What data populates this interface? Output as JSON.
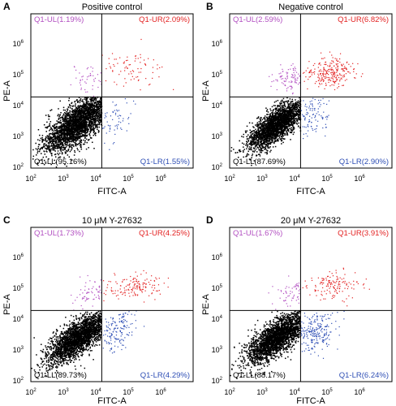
{
  "colors": {
    "ul": "#b24fc1",
    "ur": "#e32222",
    "ll": "#000000",
    "lr": "#2f4fb5"
  },
  "chart_data": [
    {
      "type": "scatter",
      "panel": "A",
      "title": "Positive control",
      "xlabel": "FITC-A",
      "ylabel": "PE-A",
      "scale": "log",
      "xlim": [
        100,
        1000000
      ],
      "ylim": [
        100,
        1000000
      ],
      "xticks": [
        "10",
        "10",
        "10",
        "10",
        "10"
      ],
      "xtick_exponents": [
        "2",
        "3",
        "4",
        "5",
        "6"
      ],
      "yticks": [
        "10",
        "10",
        "10",
        "10",
        "10"
      ],
      "ytick_exponents": [
        "2",
        "3",
        "4",
        "5",
        "6"
      ],
      "gate": {
        "x": 5600,
        "y": 7000
      },
      "quadrants": [
        {
          "label": "Q1-UL(1.19%)",
          "percent": 1.19,
          "color": "#b24fc1"
        },
        {
          "label": "Q1-UR(2.09%)",
          "percent": 2.09,
          "color": "#e32222"
        },
        {
          "label": "Q1-LL(95.16%)",
          "percent": 95.16,
          "color": "#000000"
        },
        {
          "label": "Q1-LR(1.55%)",
          "percent": 1.55,
          "color": "#2f4fb5"
        }
      ],
      "clusters": [
        {
          "quadrant": "LL",
          "center": [
            1500,
            1500
          ],
          "spread": [
            0.42,
            0.38
          ],
          "corr": 0.72,
          "count": 2600
        },
        {
          "quadrant": "UL",
          "center": [
            2500,
            20000
          ],
          "spread": [
            0.25,
            0.2
          ],
          "corr": 0.1,
          "count": 45
        },
        {
          "quadrant": "UR",
          "center": [
            25000,
            40000
          ],
          "spread": [
            0.4,
            0.25
          ],
          "corr": 0.0,
          "count": 80
        },
        {
          "quadrant": "LR",
          "center": [
            12000,
            2000
          ],
          "spread": [
            0.22,
            0.32
          ],
          "corr": 0.3,
          "count": 60
        }
      ]
    },
    {
      "type": "scatter",
      "panel": "B",
      "title": "Negative control",
      "xlabel": "FITC-A",
      "ylabel": "PE-A",
      "scale": "log",
      "xlim": [
        100,
        1000000
      ],
      "ylim": [
        100,
        1000000
      ],
      "xticks": [
        "10",
        "10",
        "10",
        "10",
        "10"
      ],
      "xtick_exponents": [
        "2",
        "3",
        "4",
        "5",
        "6"
      ],
      "yticks": [
        "10",
        "10",
        "10",
        "10",
        "10"
      ],
      "ytick_exponents": [
        "2",
        "3",
        "4",
        "5",
        "6"
      ],
      "gate": {
        "x": 5600,
        "y": 7000
      },
      "quadrants": [
        {
          "label": "Q1-UL(2.59%)",
          "percent": 2.59,
          "color": "#b24fc1"
        },
        {
          "label": "Q1-UR(6.82%)",
          "percent": 6.82,
          "color": "#e32222"
        },
        {
          "label": "Q1-LL(87.69%)",
          "percent": 87.69,
          "color": "#000000"
        },
        {
          "label": "Q1-LR(2.90%)",
          "percent": 2.9,
          "color": "#2f4fb5"
        }
      ],
      "clusters": [
        {
          "quadrant": "LL",
          "center": [
            1400,
            1300
          ],
          "spread": [
            0.36,
            0.32
          ],
          "corr": 0.75,
          "count": 2300
        },
        {
          "quadrant": "UL",
          "center": [
            3000,
            20000
          ],
          "spread": [
            0.2,
            0.18
          ],
          "corr": 0.2,
          "count": 90
        },
        {
          "quadrant": "UR",
          "center": [
            30000,
            30000
          ],
          "spread": [
            0.32,
            0.18
          ],
          "corr": 0.1,
          "count": 240
        },
        {
          "quadrant": "LR",
          "center": [
            12000,
            2500
          ],
          "spread": [
            0.2,
            0.3
          ],
          "corr": 0.3,
          "count": 100
        }
      ]
    },
    {
      "type": "scatter",
      "panel": "C",
      "title": "10 μM Y-27632",
      "xlabel": "FITC-A",
      "ylabel": "PE-A",
      "scale": "log",
      "xlim": [
        100,
        1000000
      ],
      "ylim": [
        100,
        1000000
      ],
      "xticks": [
        "10",
        "10",
        "10",
        "10",
        "10"
      ],
      "xtick_exponents": [
        "2",
        "3",
        "4",
        "5",
        "6"
      ],
      "yticks": [
        "10",
        "10",
        "10",
        "10",
        "10"
      ],
      "ytick_exponents": [
        "2",
        "3",
        "4",
        "5",
        "6"
      ],
      "gate": {
        "x": 5600,
        "y": 7000
      },
      "quadrants": [
        {
          "label": "Q1-UL(1.73%)",
          "percent": 1.73,
          "color": "#b24fc1"
        },
        {
          "label": "Q1-UR(4.25%)",
          "percent": 4.25,
          "color": "#e32222"
        },
        {
          "label": "Q1-LL(89.73%)",
          "percent": 89.73,
          "color": "#000000"
        },
        {
          "label": "Q1-LR(4.29%)",
          "percent": 4.29,
          "color": "#2f4fb5"
        }
      ],
      "clusters": [
        {
          "quadrant": "LL",
          "center": [
            1500,
            1400
          ],
          "spread": [
            0.38,
            0.34
          ],
          "corr": 0.75,
          "count": 2400
        },
        {
          "quadrant": "UL",
          "center": [
            3000,
            20000
          ],
          "spread": [
            0.22,
            0.18
          ],
          "corr": 0.2,
          "count": 60
        },
        {
          "quadrant": "UR",
          "center": [
            35000,
            30000
          ],
          "spread": [
            0.35,
            0.16
          ],
          "corr": 0.1,
          "count": 150
        },
        {
          "quadrant": "LR",
          "center": [
            13000,
            2200
          ],
          "spread": [
            0.22,
            0.3
          ],
          "corr": 0.3,
          "count": 150
        }
      ]
    },
    {
      "type": "scatter",
      "panel": "D",
      "title": "20 μM Y-27632",
      "xlabel": "FITC-A",
      "ylabel": "PE-A",
      "scale": "log",
      "xlim": [
        100,
        1000000
      ],
      "ylim": [
        100,
        1000000
      ],
      "xticks": [
        "10",
        "10",
        "10",
        "10",
        "10"
      ],
      "xtick_exponents": [
        "2",
        "3",
        "4",
        "5",
        "6"
      ],
      "yticks": [
        "10",
        "10",
        "10",
        "10",
        "10"
      ],
      "ytick_exponents": [
        "2",
        "3",
        "4",
        "5",
        "6"
      ],
      "gate": {
        "x": 5600,
        "y": 7000
      },
      "quadrants": [
        {
          "label": "Q1-UL(1.67%)",
          "percent": 1.67,
          "color": "#b24fc1"
        },
        {
          "label": "Q1-UR(3.91%)",
          "percent": 3.91,
          "color": "#e32222"
        },
        {
          "label": "Q1-LL(88.17%)",
          "percent": 88.17,
          "color": "#000000"
        },
        {
          "label": "Q1-LR(6.24%)",
          "percent": 6.24,
          "color": "#2f4fb5"
        }
      ],
      "clusters": [
        {
          "quadrant": "LL",
          "center": [
            1500,
            1400
          ],
          "spread": [
            0.38,
            0.34
          ],
          "corr": 0.75,
          "count": 2400
        },
        {
          "quadrant": "UL",
          "center": [
            3000,
            20000
          ],
          "spread": [
            0.22,
            0.18
          ],
          "corr": 0.2,
          "count": 55
        },
        {
          "quadrant": "UR",
          "center": [
            35000,
            30000
          ],
          "spread": [
            0.35,
            0.18
          ],
          "corr": 0.1,
          "count": 140
        },
        {
          "quadrant": "LR",
          "center": [
            13000,
            2200
          ],
          "spread": [
            0.24,
            0.32
          ],
          "corr": 0.3,
          "count": 220
        }
      ]
    }
  ]
}
